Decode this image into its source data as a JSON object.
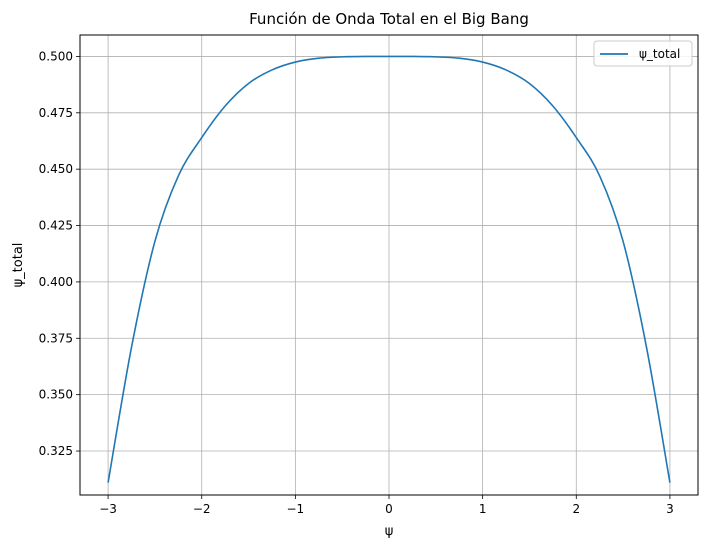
{
  "chart_data": {
    "type": "line",
    "title": "Función de Onda Total en el Big Bang",
    "xlabel": "ψ",
    "ylabel": "ψ_total",
    "xlim": [
      -3.3,
      3.3
    ],
    "ylim": [
      0.3055,
      0.5095
    ],
    "xticks": [
      -3,
      -2,
      -1,
      0,
      1,
      2,
      3
    ],
    "xtick_labels": [
      "−3",
      "−2",
      "−1",
      "0",
      "1",
      "2",
      "3"
    ],
    "yticks": [
      0.325,
      0.35,
      0.375,
      0.4,
      0.425,
      0.45,
      0.475,
      0.5
    ],
    "ytick_labels": [
      "0.325",
      "0.350",
      "0.375",
      "0.400",
      "0.425",
      "0.450",
      "0.475",
      "0.500"
    ],
    "grid": true,
    "legend_position": "top-right",
    "series": [
      {
        "name": "ψ_total",
        "color": "#1f77b4",
        "x": [
          -3.0,
          -2.75,
          -2.5,
          -2.25,
          -2.0,
          -1.75,
          -1.5,
          -1.25,
          -1.0,
          -0.75,
          -0.5,
          -0.25,
          0.0,
          0.25,
          0.5,
          0.75,
          1.0,
          1.25,
          1.5,
          1.75,
          2.0,
          2.25,
          2.5,
          2.75,
          3.0
        ],
        "y": [
          0.311,
          0.371,
          0.418,
          0.447,
          0.464,
          0.478,
          0.488,
          0.494,
          0.4975,
          0.4992,
          0.4998,
          0.5,
          0.5,
          0.5,
          0.4998,
          0.4992,
          0.4975,
          0.494,
          0.488,
          0.478,
          0.464,
          0.447,
          0.418,
          0.371,
          0.311
        ]
      }
    ]
  }
}
